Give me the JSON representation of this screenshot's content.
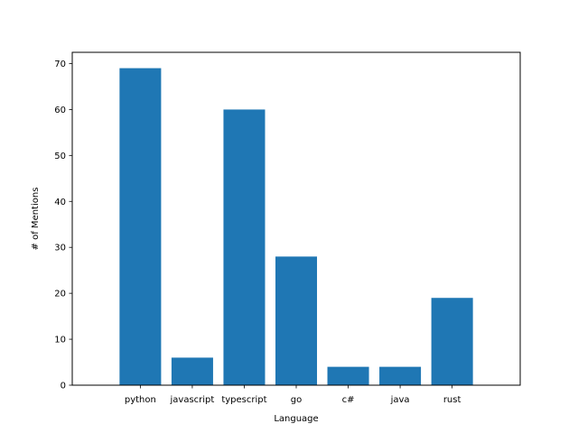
{
  "chart_data": {
    "type": "bar",
    "title": "",
    "xlabel": "Language",
    "ylabel": "# of Mentions",
    "categories": [
      "python",
      "javascript",
      "typescript",
      "go",
      "c#",
      "java",
      "rust"
    ],
    "values": [
      69,
      6,
      60,
      28,
      4,
      4,
      19
    ],
    "ylim": [
      0,
      72.45
    ],
    "yticks": [
      0,
      10,
      20,
      30,
      40,
      50,
      60,
      70
    ],
    "grid": false,
    "legend": "none",
    "bar_color": "#1f77b4"
  }
}
